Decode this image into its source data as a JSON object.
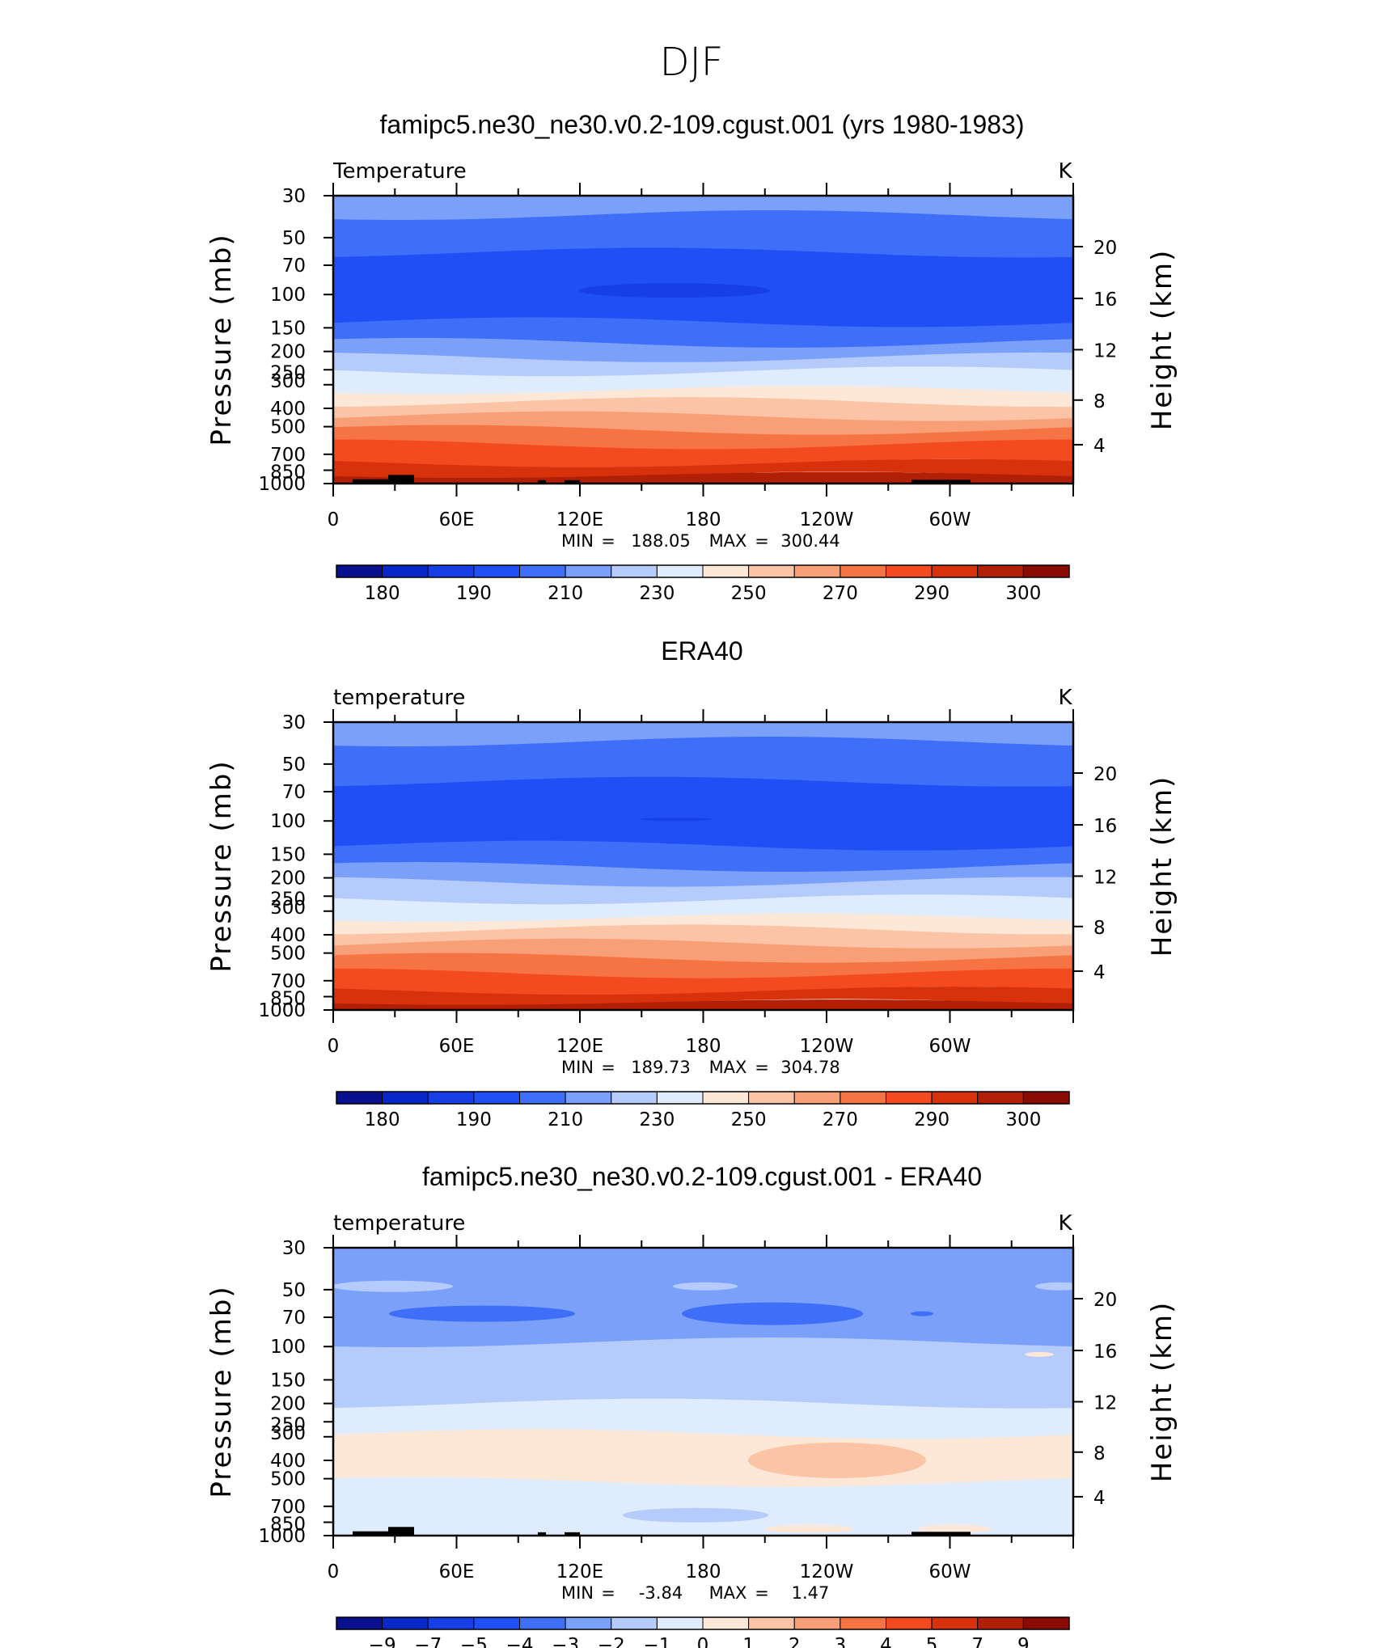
{
  "figure_title": "DJF",
  "chart_data": [
    {
      "type": "contour",
      "title": "famipc5.ne30_ne30.v0.2-109.cgust.001 (yrs 1980-1983)",
      "variable_label": "Temperature",
      "units": "K",
      "ylabel": "Pressure (mb)",
      "y2label": "Height (km)",
      "y_ticks": [
        "30",
        "50",
        "70",
        "100",
        "150",
        "200",
        "250",
        "300",
        "400",
        "500",
        "700",
        "850",
        "1000"
      ],
      "y2_ticks": [
        "20",
        "16",
        "12",
        "8",
        "4"
      ],
      "x_ticks": [
        "0",
        "60E",
        "120E",
        "180",
        "120W",
        "60W"
      ],
      "min_label": "MIN",
      "min": "188.05",
      "max_label": "MAX",
      "max": "300.44",
      "colorbar_labels": [
        "180",
        "190",
        "210",
        "230",
        "250",
        "270",
        "290",
        "300"
      ],
      "colorbar_colors": [
        "#08108e",
        "#0a28c8",
        "#1640e6",
        "#2050f5",
        "#3f6ff8",
        "#7ba0fa",
        "#b5cbfc",
        "#dfecfd",
        "#fde8d8",
        "#fbc4a6",
        "#f89f78",
        "#f67444",
        "#f34a1f",
        "#d8320c",
        "#b01f06",
        "#8a0a04"
      ],
      "bands": [
        {
          "p": 30,
          "c": 5
        },
        {
          "p": 38,
          "c": 4
        },
        {
          "p": 60,
          "c": 3
        },
        {
          "p": 140,
          "c": 4
        },
        {
          "p": 180,
          "c": 5
        },
        {
          "p": 215,
          "c": 6
        },
        {
          "p": 255,
          "c": 7
        },
        {
          "p": 320,
          "c": 8
        },
        {
          "p": 370,
          "c": 9
        },
        {
          "p": 440,
          "c": 10
        },
        {
          "p": 520,
          "c": 11
        },
        {
          "p": 620,
          "c": 12
        },
        {
          "p": 780,
          "c": 13
        },
        {
          "p": 900,
          "c": 14
        },
        {
          "p": 1000,
          "c": 14
        }
      ],
      "topography": true
    },
    {
      "type": "contour",
      "title": "ERA40",
      "variable_label": "temperature",
      "units": "K",
      "ylabel": "Pressure (mb)",
      "y2label": "Height (km)",
      "y_ticks": [
        "30",
        "50",
        "70",
        "100",
        "150",
        "200",
        "250",
        "300",
        "400",
        "500",
        "700",
        "850",
        "1000"
      ],
      "y2_ticks": [
        "20",
        "16",
        "12",
        "8",
        "4"
      ],
      "x_ticks": [
        "0",
        "60E",
        "120E",
        "180",
        "120W",
        "60W"
      ],
      "min_label": "MIN",
      "min": "189.73",
      "max_label": "MAX",
      "max": "304.78",
      "colorbar_labels": [
        "180",
        "190",
        "210",
        "230",
        "250",
        "270",
        "290",
        "300"
      ],
      "colorbar_colors": [
        "#08108e",
        "#0a28c8",
        "#1640e6",
        "#2050f5",
        "#3f6ff8",
        "#7ba0fa",
        "#b5cbfc",
        "#dfecfd",
        "#fde8d8",
        "#fbc4a6",
        "#f89f78",
        "#f67444",
        "#f34a1f",
        "#d8320c",
        "#b01f06",
        "#8a0a04"
      ],
      "bands": [
        {
          "p": 30,
          "c": 5
        },
        {
          "p": 38,
          "c": 4
        },
        {
          "p": 62,
          "c": 3
        },
        {
          "p": 135,
          "c": 4
        },
        {
          "p": 175,
          "c": 5
        },
        {
          "p": 210,
          "c": 6
        },
        {
          "p": 260,
          "c": 7
        },
        {
          "p": 325,
          "c": 8
        },
        {
          "p": 375,
          "c": 9
        },
        {
          "p": 445,
          "c": 10
        },
        {
          "p": 530,
          "c": 11
        },
        {
          "p": 640,
          "c": 12
        },
        {
          "p": 790,
          "c": 13
        },
        {
          "p": 910,
          "c": 14
        },
        {
          "p": 1000,
          "c": 14
        }
      ],
      "topography": false
    },
    {
      "type": "contour",
      "title": "famipc5.ne30_ne30.v0.2-109.cgust.001 - ERA40",
      "variable_label": "temperature",
      "units": "K",
      "ylabel": "Pressure (mb)",
      "y2label": "Height (km)",
      "y_ticks": [
        "30",
        "50",
        "70",
        "100",
        "150",
        "200",
        "250",
        "300",
        "400",
        "500",
        "700",
        "850",
        "1000"
      ],
      "y2_ticks": [
        "20",
        "16",
        "12",
        "8",
        "4"
      ],
      "x_ticks": [
        "0",
        "60E",
        "120E",
        "180",
        "120W",
        "60W"
      ],
      "min_label": "MIN",
      "min": "-3.84",
      "max_label": "MAX",
      "max": "1.47",
      "colorbar_labels": [
        "−9",
        "−7",
        "−5",
        "−4",
        "−3",
        "−2",
        "−1",
        "0",
        "1",
        "2",
        "3",
        "4",
        "5",
        "7",
        "9"
      ],
      "colorbar_colors": [
        "#08108e",
        "#0a28c8",
        "#1640e6",
        "#2050f5",
        "#3f6ff8",
        "#7ba0fa",
        "#b5cbfc",
        "#dfecfd",
        "#fde8d8",
        "#fbc4a6",
        "#f89f78",
        "#f67444",
        "#f34a1f",
        "#d8320c",
        "#b01f06",
        "#8a0a04"
      ],
      "bands": [
        {
          "p": 30,
          "c": 5
        },
        {
          "p": 95,
          "c": 6
        },
        {
          "p": 200,
          "c": 7
        },
        {
          "p": 290,
          "c": 8
        },
        {
          "p": 520,
          "c": 7
        },
        {
          "p": 1000,
          "c": 7
        }
      ],
      "topography": true
    }
  ]
}
